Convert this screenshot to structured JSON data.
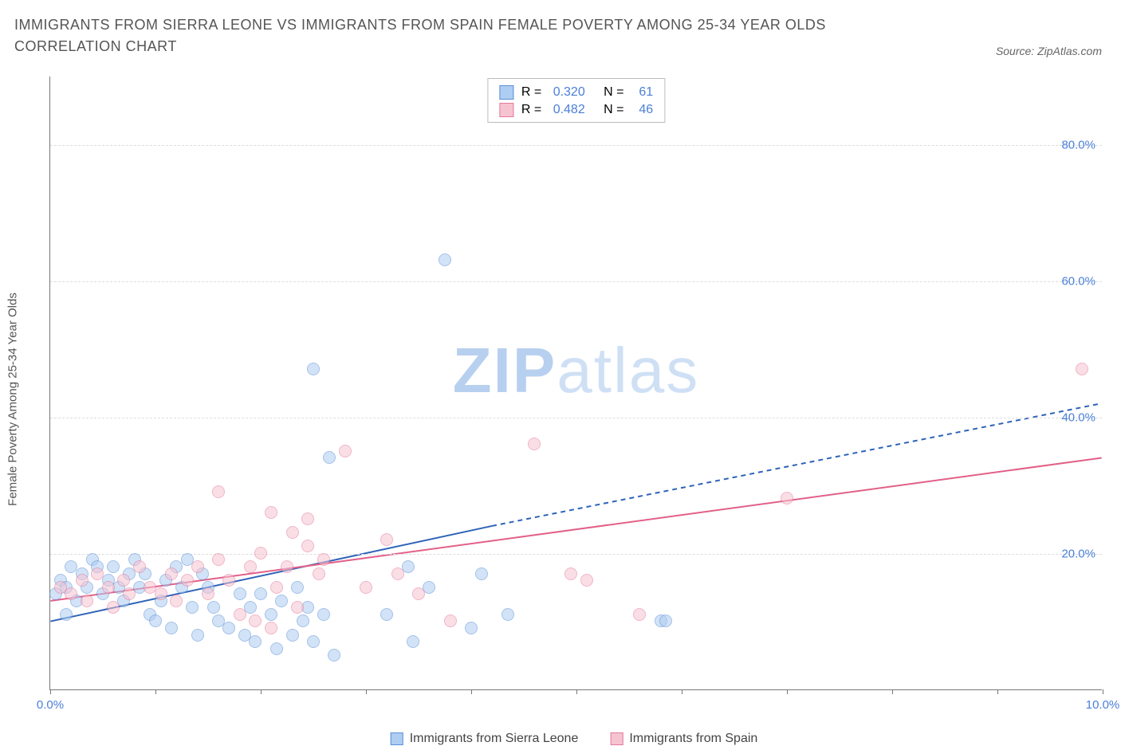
{
  "title": "IMMIGRANTS FROM SIERRA LEONE VS IMMIGRANTS FROM SPAIN FEMALE POVERTY AMONG 25-34 YEAR OLDS CORRELATION CHART",
  "source_note": "Source: ZipAtlas.com",
  "yaxis_label": "Female Poverty Among 25-34 Year Olds",
  "watermark": {
    "bold": "ZIP",
    "light": "atlas"
  },
  "chart": {
    "type": "scatter",
    "background_color": "#ffffff",
    "grid_color": "#dddddd",
    "axis_color": "#777777",
    "tick_label_color": "#4a7fd8",
    "tick_fontsize": 15,
    "xlim": [
      0,
      10
    ],
    "ylim": [
      0,
      90
    ],
    "x_ticks": [
      0,
      1,
      2,
      3,
      4,
      5,
      6,
      7,
      8,
      9,
      10
    ],
    "x_tick_labels": {
      "0": "0.0%",
      "10": "10.0%"
    },
    "y_ticks": [
      20,
      40,
      60,
      80
    ],
    "y_tick_labels": {
      "20": "20.0%",
      "40": "40.0%",
      "60": "60.0%",
      "80": "80.0%"
    },
    "point_radius": 8,
    "point_opacity": 0.55,
    "point_border_width": 1,
    "series": [
      {
        "name": "Immigrants from Sierra Leone",
        "color_fill": "#aecdf2",
        "color_border": "#5b8fd6",
        "R": "0.320",
        "N": "61",
        "regression": {
          "solid": {
            "x1": 0,
            "y1": 10,
            "x2": 4.2,
            "y2": 24
          },
          "dashed": {
            "x1": 4.2,
            "y1": 24,
            "x2": 10,
            "y2": 42
          },
          "color": "#2e63b8",
          "width": 2
        },
        "points": [
          [
            0.05,
            14
          ],
          [
            0.1,
            16
          ],
          [
            0.15,
            15
          ],
          [
            0.2,
            18
          ],
          [
            0.25,
            13
          ],
          [
            0.3,
            17
          ],
          [
            0.35,
            15
          ],
          [
            0.15,
            11
          ],
          [
            0.4,
            19
          ],
          [
            0.45,
            18
          ],
          [
            0.5,
            14
          ],
          [
            0.55,
            16
          ],
          [
            0.6,
            18
          ],
          [
            0.65,
            15
          ],
          [
            0.7,
            13
          ],
          [
            0.75,
            17
          ],
          [
            0.8,
            19
          ],
          [
            0.85,
            15
          ],
          [
            0.9,
            17
          ],
          [
            0.95,
            11
          ],
          [
            1.0,
            10
          ],
          [
            1.05,
            13
          ],
          [
            1.1,
            16
          ],
          [
            1.15,
            9
          ],
          [
            1.2,
            18
          ],
          [
            1.25,
            15
          ],
          [
            1.3,
            19
          ],
          [
            1.35,
            12
          ],
          [
            1.4,
            8
          ],
          [
            1.45,
            17
          ],
          [
            1.5,
            15
          ],
          [
            1.55,
            12
          ],
          [
            1.6,
            10
          ],
          [
            1.7,
            9
          ],
          [
            1.8,
            14
          ],
          [
            1.85,
            8
          ],
          [
            1.9,
            12
          ],
          [
            1.95,
            7
          ],
          [
            2.0,
            14
          ],
          [
            2.1,
            11
          ],
          [
            2.15,
            6
          ],
          [
            2.2,
            13
          ],
          [
            2.3,
            8
          ],
          [
            2.35,
            15
          ],
          [
            2.4,
            10
          ],
          [
            2.45,
            12
          ],
          [
            2.5,
            7
          ],
          [
            2.6,
            11
          ],
          [
            2.7,
            5
          ],
          [
            2.65,
            34
          ],
          [
            2.5,
            47
          ],
          [
            3.2,
            11
          ],
          [
            3.4,
            18
          ],
          [
            3.45,
            7
          ],
          [
            3.6,
            15
          ],
          [
            4.0,
            9
          ],
          [
            4.1,
            17
          ],
          [
            4.35,
            11
          ],
          [
            3.75,
            63
          ],
          [
            5.8,
            10
          ],
          [
            5.85,
            10
          ]
        ]
      },
      {
        "name": "Immigrants from Spain",
        "color_fill": "#f6c4d1",
        "color_border": "#e47a9c",
        "R": "0.482",
        "N": "46",
        "regression": {
          "solid": {
            "x1": 0,
            "y1": 13,
            "x2": 10,
            "y2": 34
          },
          "dashed": null,
          "color": "#e26088",
          "width": 2
        },
        "points": [
          [
            0.1,
            15
          ],
          [
            0.2,
            14
          ],
          [
            0.3,
            16
          ],
          [
            0.35,
            13
          ],
          [
            0.45,
            17
          ],
          [
            0.55,
            15
          ],
          [
            0.6,
            12
          ],
          [
            0.7,
            16
          ],
          [
            0.75,
            14
          ],
          [
            0.85,
            18
          ],
          [
            0.95,
            15
          ],
          [
            1.05,
            14
          ],
          [
            1.15,
            17
          ],
          [
            1.2,
            13
          ],
          [
            1.3,
            16
          ],
          [
            1.4,
            18
          ],
          [
            1.5,
            14
          ],
          [
            1.6,
            19
          ],
          [
            1.6,
            29
          ],
          [
            1.7,
            16
          ],
          [
            1.8,
            11
          ],
          [
            1.9,
            18
          ],
          [
            2.0,
            20
          ],
          [
            2.1,
            26
          ],
          [
            2.15,
            15
          ],
          [
            2.25,
            18
          ],
          [
            2.3,
            23
          ],
          [
            2.35,
            12
          ],
          [
            2.45,
            25
          ],
          [
            2.55,
            17
          ],
          [
            2.45,
            21
          ],
          [
            2.6,
            19
          ],
          [
            2.8,
            35
          ],
          [
            3.0,
            15
          ],
          [
            3.2,
            22
          ],
          [
            3.3,
            17
          ],
          [
            3.5,
            14
          ],
          [
            3.8,
            10
          ],
          [
            4.6,
            36
          ],
          [
            4.95,
            17
          ],
          [
            5.1,
            16
          ],
          [
            5.6,
            11
          ],
          [
            7.0,
            28
          ],
          [
            9.8,
            47
          ],
          [
            2.1,
            9
          ],
          [
            1.95,
            10
          ]
        ]
      }
    ]
  },
  "stats_labels": {
    "r_prefix": "R = ",
    "n_prefix": "   N =  "
  },
  "bottom_legend": [
    {
      "swatch_fill": "#aecdf2",
      "swatch_border": "#5b8fd6",
      "label": "Immigrants from Sierra Leone"
    },
    {
      "swatch_fill": "#f6c4d1",
      "swatch_border": "#e47a9c",
      "label": "Immigrants from Spain"
    }
  ]
}
